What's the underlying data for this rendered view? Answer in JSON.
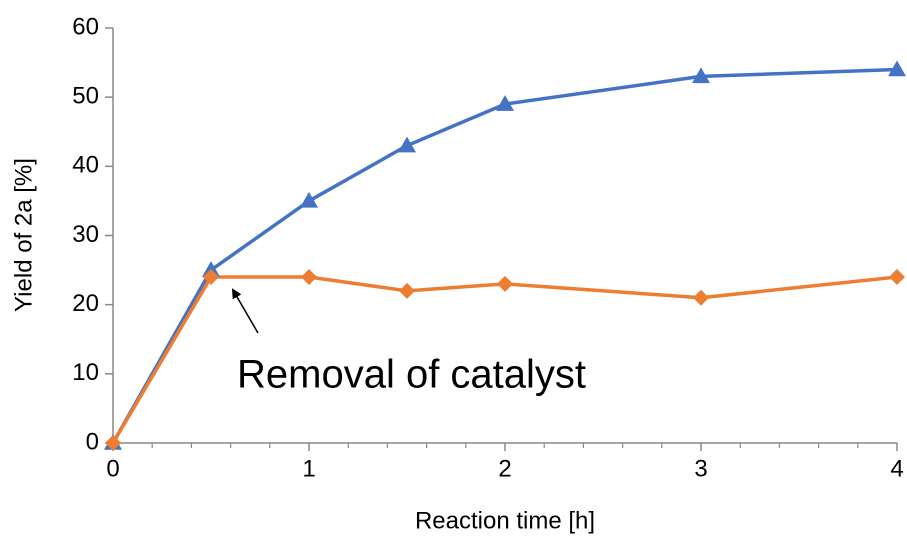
{
  "chart_data": {
    "type": "line",
    "xlabel": "Reaction time [h]",
    "ylabel": "Yield of 2a [%]",
    "annotation": "Removal of catalyst",
    "x": [
      0,
      0.5,
      1,
      1.5,
      2,
      3,
      4
    ],
    "series": [
      {
        "color": "#4472c4",
        "marker": "triangle",
        "values": [
          0,
          25,
          35,
          43,
          49,
          53,
          54
        ]
      },
      {
        "color": "#ed7d31",
        "marker": "diamond",
        "values": [
          0,
          24,
          24,
          22,
          23,
          21,
          24
        ]
      }
    ],
    "xlim": [
      0,
      4
    ],
    "xticks": [
      0,
      1,
      2,
      3,
      4
    ],
    "xminorticks": [
      0.2,
      0.4,
      0.6,
      0.8,
      1.2,
      1.4,
      1.6,
      1.8,
      2.2,
      2.4,
      2.6,
      2.8,
      3.2,
      3.4,
      3.6,
      3.8
    ],
    "ylim": [
      0,
      60
    ],
    "yticks": [
      0,
      10,
      20,
      30,
      40,
      50,
      60
    ],
    "grid": false
  }
}
